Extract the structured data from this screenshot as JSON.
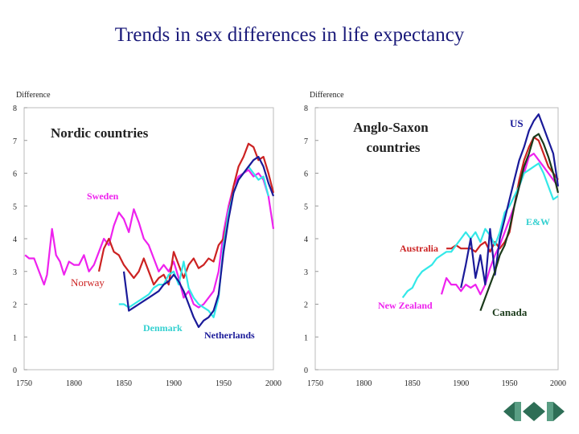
{
  "slide": {
    "title": "Trends in sex differences in life expectancy"
  },
  "colors": {
    "red": "#cc2222",
    "magenta": "#ee22ee",
    "blue": "#1a1a99",
    "cyan": "#33e8e8",
    "dark": "#1a3a1a",
    "text": "#222222"
  },
  "chart_data": [
    {
      "type": "line",
      "title": "Nordic countries",
      "ylabel": "Difference",
      "xlim": [
        1750,
        2000
      ],
      "ylim": [
        0,
        8
      ],
      "x_ticks": [
        "1750",
        "1800",
        "1850",
        "1900",
        "1950",
        "2000"
      ],
      "y_ticks": [
        "0",
        "1",
        "2",
        "3",
        "4",
        "5",
        "6",
        "7",
        "8"
      ],
      "series": [
        {
          "name": "Sweden",
          "color": "#ee22ee",
          "x": [
            1751,
            1755,
            1760,
            1765,
            1770,
            1773,
            1778,
            1782,
            1786,
            1790,
            1795,
            1800,
            1805,
            1810,
            1815,
            1820,
            1825,
            1830,
            1835,
            1840,
            1845,
            1850,
            1855,
            1860,
            1865,
            1870,
            1875,
            1880,
            1885,
            1890,
            1895,
            1900,
            1905,
            1910,
            1915,
            1920,
            1925,
            1930,
            1935,
            1940,
            1945,
            1950,
            1955,
            1960,
            1965,
            1970,
            1975,
            1980,
            1985,
            1990,
            1995,
            2000
          ],
          "y": [
            3.5,
            3.4,
            3.4,
            3.0,
            2.6,
            2.9,
            4.3,
            3.5,
            3.3,
            2.9,
            3.3,
            3.2,
            3.2,
            3.5,
            3.0,
            3.2,
            3.6,
            4.0,
            3.8,
            4.4,
            4.8,
            4.6,
            4.2,
            4.9,
            4.5,
            4.0,
            3.8,
            3.4,
            3.0,
            3.2,
            3.0,
            3.3,
            2.8,
            2.2,
            2.4,
            2.0,
            1.9,
            2.0,
            2.2,
            2.4,
            3.0,
            4.2,
            5.0,
            5.6,
            5.9,
            6.0,
            6.1,
            5.9,
            6.0,
            5.8,
            5.3,
            4.3
          ]
        },
        {
          "name": "Norway",
          "color": "#cc2222",
          "x": [
            1825,
            1830,
            1835,
            1840,
            1845,
            1850,
            1855,
            1860,
            1865,
            1870,
            1875,
            1880,
            1885,
            1890,
            1895,
            1900,
            1905,
            1910,
            1915,
            1920,
            1925,
            1930,
            1935,
            1940,
            1945,
            1950,
            1955,
            1960,
            1965,
            1970,
            1975,
            1980,
            1985,
            1990,
            1995,
            2000
          ],
          "y": [
            3.0,
            3.7,
            4.0,
            3.6,
            3.5,
            3.2,
            3.0,
            2.8,
            3.0,
            3.4,
            3.0,
            2.6,
            2.8,
            2.9,
            2.6,
            3.6,
            3.2,
            2.8,
            3.2,
            3.4,
            3.1,
            3.2,
            3.4,
            3.3,
            3.8,
            4.0,
            4.8,
            5.6,
            6.2,
            6.5,
            6.9,
            6.8,
            6.4,
            6.5,
            6.0,
            5.4
          ]
        },
        {
          "name": "Denmark",
          "color": "#33e8e8",
          "x": [
            1845,
            1850,
            1855,
            1860,
            1865,
            1870,
            1875,
            1880,
            1885,
            1890,
            1895,
            1900,
            1905,
            1910,
            1915,
            1920,
            1925,
            1930,
            1935,
            1940,
            1945,
            1950,
            1955,
            1960,
            1965,
            1970,
            1975,
            1980,
            1985,
            1990,
            1995
          ],
          "y": [
            2.0,
            2.0,
            1.9,
            2.0,
            2.1,
            2.2,
            2.3,
            2.5,
            2.6,
            2.6,
            2.9,
            3.0,
            2.6,
            3.3,
            2.5,
            2.2,
            2.0,
            1.9,
            1.8,
            1.6,
            2.2,
            3.8,
            4.8,
            5.4,
            5.8,
            6.0,
            6.2,
            6.0,
            5.8,
            5.9,
            5.3
          ]
        },
        {
          "name": "Netherlands",
          "color": "#1a1a99",
          "x": [
            1850,
            1855,
            1860,
            1865,
            1870,
            1875,
            1880,
            1885,
            1890,
            1895,
            1900,
            1905,
            1910,
            1915,
            1920,
            1925,
            1930,
            1935,
            1940,
            1945,
            1950,
            1955,
            1960,
            1965,
            1970,
            1975,
            1980,
            1985,
            1990,
            1995,
            2000
          ],
          "y": [
            3.0,
            1.8,
            1.9,
            2.0,
            2.1,
            2.2,
            2.3,
            2.4,
            2.6,
            2.7,
            2.9,
            2.7,
            2.4,
            2.0,
            1.6,
            1.3,
            1.5,
            1.6,
            1.8,
            2.3,
            3.6,
            4.6,
            5.4,
            5.8,
            6.0,
            6.2,
            6.4,
            6.5,
            6.2,
            5.7,
            5.3
          ]
        }
      ],
      "annotations": [
        "Sweden",
        "Norway",
        "Denmark",
        "Netherlands"
      ]
    },
    {
      "type": "line",
      "title_lines": [
        "Anglo-Saxon",
        "countries"
      ],
      "ylabel": "Difference",
      "xlim": [
        1750,
        2000
      ],
      "ylim": [
        0,
        8
      ],
      "x_ticks": [
        "1750",
        "1800",
        "1850",
        "1900",
        "1950",
        "2000"
      ],
      "y_ticks": [
        "0",
        "1",
        "2",
        "3",
        "4",
        "5",
        "6",
        "7",
        "8"
      ],
      "series": [
        {
          "name": "Australia",
          "color": "#cc2222",
          "x": [
            1885,
            1890,
            1895,
            1900,
            1905,
            1910,
            1915,
            1920,
            1925,
            1930,
            1935,
            1940,
            1945,
            1950,
            1955,
            1960,
            1965,
            1970,
            1975,
            1980,
            1985,
            1990,
            1995,
            2000
          ],
          "y": [
            3.7,
            3.7,
            3.8,
            3.7,
            3.7,
            3.7,
            3.6,
            3.8,
            3.9,
            3.6,
            3.9,
            3.7,
            3.9,
            4.2,
            5.0,
            5.8,
            6.4,
            6.8,
            7.1,
            7.0,
            6.6,
            6.2,
            6.0,
            5.8
          ]
        },
        {
          "name": "New Zealand",
          "color": "#ee22ee",
          "x": [
            1880,
            1885,
            1890,
            1895,
            1900,
            1905,
            1910,
            1915,
            1920,
            1925,
            1930,
            1935,
            1940,
            1945,
            1950,
            1955,
            1960,
            1965,
            1970,
            1975,
            1980,
            1985,
            1990,
            1995,
            2000
          ],
          "y": [
            2.3,
            2.8,
            2.6,
            2.6,
            2.4,
            2.6,
            2.5,
            2.6,
            2.3,
            2.6,
            3.1,
            3.5,
            3.8,
            4.2,
            4.6,
            5.0,
            5.6,
            6.0,
            6.5,
            6.6,
            6.4,
            6.2,
            6.0,
            5.8,
            5.6
          ]
        },
        {
          "name": "E&W",
          "color": "#33e8e8",
          "x": [
            1840,
            1845,
            1850,
            1855,
            1860,
            1865,
            1870,
            1875,
            1880,
            1885,
            1890,
            1895,
            1900,
            1905,
            1910,
            1915,
            1920,
            1925,
            1930,
            1935,
            1940,
            1945,
            1950,
            1955,
            1960,
            1965,
            1970,
            1975,
            1980,
            1985,
            1990,
            1995,
            2000
          ],
          "y": [
            2.2,
            2.4,
            2.5,
            2.8,
            3.0,
            3.1,
            3.2,
            3.4,
            3.5,
            3.6,
            3.6,
            3.8,
            4.0,
            4.2,
            4.0,
            4.2,
            3.9,
            4.3,
            4.1,
            3.8,
            4.2,
            4.8,
            5.0,
            5.3,
            5.6,
            6.0,
            6.1,
            6.2,
            6.3,
            6.0,
            5.6,
            5.2,
            5.3
          ]
        },
        {
          "name": "US",
          "color": "#1a1a99",
          "x": [
            1900,
            1905,
            1910,
            1915,
            1920,
            1925,
            1930,
            1935,
            1940,
            1945,
            1950,
            1955,
            1960,
            1965,
            1970,
            1975,
            1980,
            1985,
            1990,
            1995,
            2000
          ],
          "y": [
            2.5,
            3.2,
            4.0,
            2.8,
            3.5,
            2.6,
            4.3,
            2.9,
            4.0,
            4.6,
            5.2,
            5.8,
            6.4,
            6.8,
            7.3,
            7.6,
            7.8,
            7.4,
            7.0,
            6.6,
            5.6
          ]
        },
        {
          "name": "Canada",
          "color": "#1a3a1a",
          "x": [
            1920,
            1925,
            1930,
            1935,
            1940,
            1945,
            1950,
            1955,
            1960,
            1965,
            1970,
            1975,
            1980,
            1985,
            1990,
            1995,
            2000
          ],
          "y": [
            1.8,
            2.2,
            2.6,
            3.0,
            3.5,
            3.8,
            4.3,
            5.0,
            5.6,
            6.2,
            6.6,
            7.1,
            7.2,
            6.9,
            6.5,
            6.0,
            5.4
          ]
        }
      ],
      "annotations": [
        "US",
        "E&W",
        "Australia",
        "New Zealand",
        "Canada"
      ]
    }
  ]
}
